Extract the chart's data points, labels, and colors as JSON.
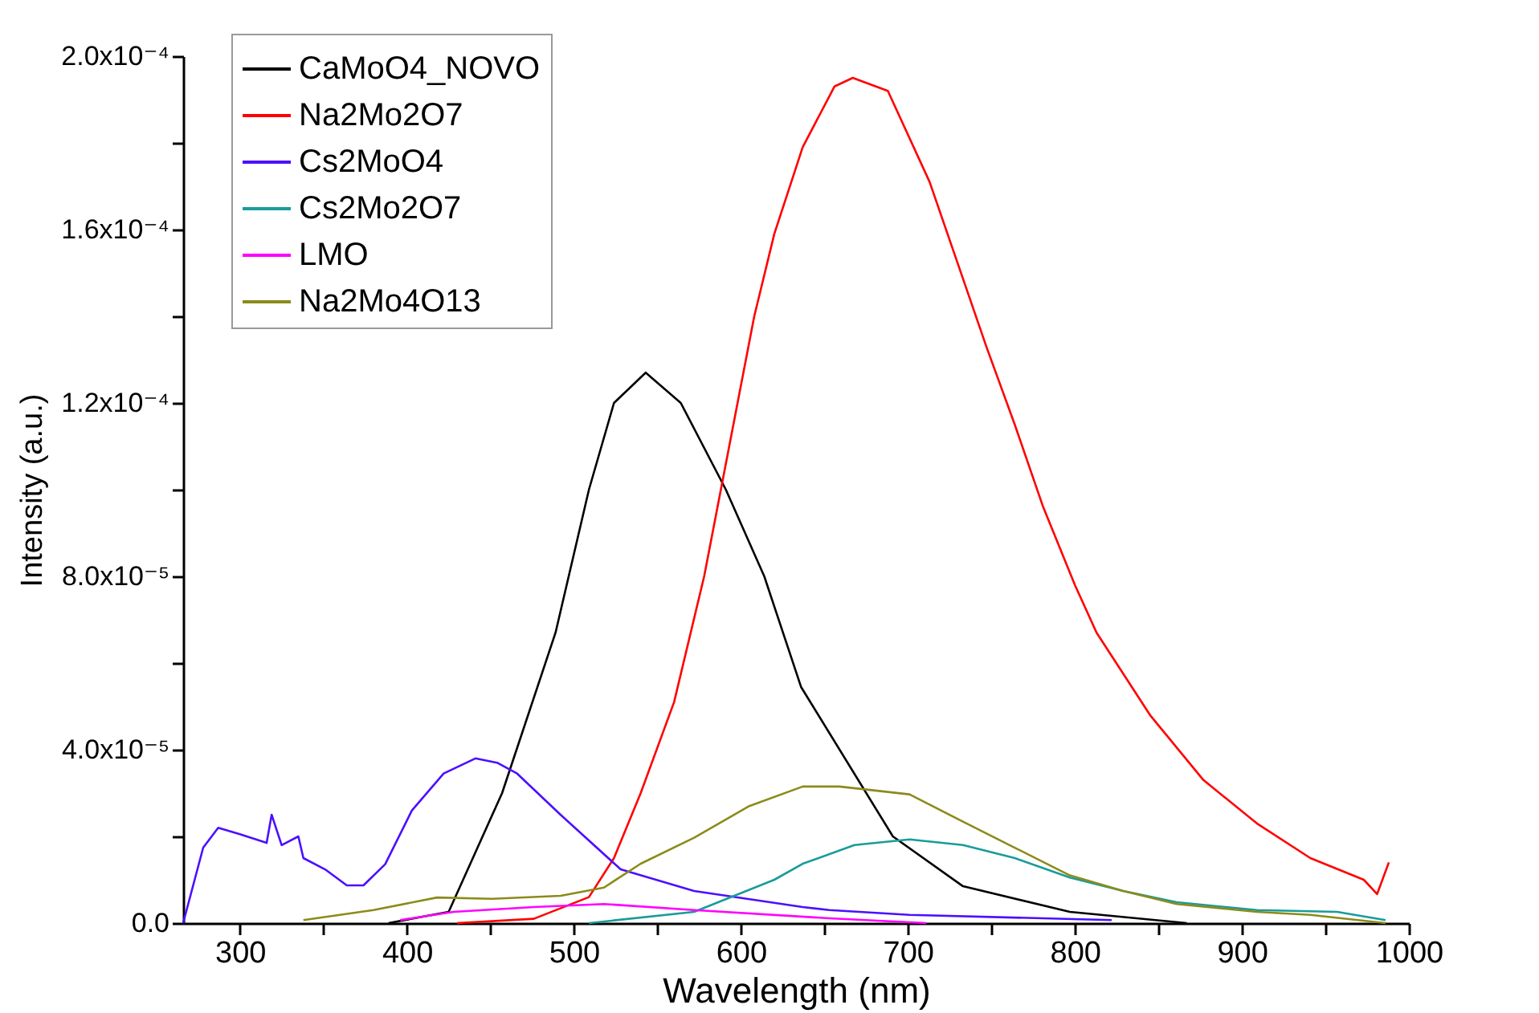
{
  "chart_data": {
    "type": "line",
    "xlabel": "Wavelength (nm)",
    "ylabel": "Intensity (a.u.)",
    "xlim": [
      266,
      1000
    ],
    "ylim": [
      0,
      0.0002
    ],
    "xticks": [
      {
        "value": 300,
        "label": "300"
      },
      {
        "value": 350,
        "label": null
      },
      {
        "value": 400,
        "label": "400"
      },
      {
        "value": 450,
        "label": null
      },
      {
        "value": 500,
        "label": "500"
      },
      {
        "value": 550,
        "label": null
      },
      {
        "value": 600,
        "label": "600"
      },
      {
        "value": 650,
        "label": null
      },
      {
        "value": 700,
        "label": "700"
      },
      {
        "value": 750,
        "label": null
      },
      {
        "value": 800,
        "label": "800"
      },
      {
        "value": 850,
        "label": null
      },
      {
        "value": 900,
        "label": "900"
      },
      {
        "value": 950,
        "label": null
      },
      {
        "value": 1000,
        "label": "1000"
      }
    ],
    "yticks": [
      {
        "value": 0,
        "label": "0.0"
      },
      {
        "value": 2e-05,
        "label": null
      },
      {
        "value": 4e-05,
        "label": "4.0x10⁻⁵"
      },
      {
        "value": 6e-05,
        "label": null
      },
      {
        "value": 8e-05,
        "label": "8.0x10⁻⁵"
      },
      {
        "value": 0.0001,
        "label": null
      },
      {
        "value": 0.00012,
        "label": "1.2x10⁻⁴"
      },
      {
        "value": 0.00014,
        "label": null
      },
      {
        "value": 0.00016,
        "label": "1.6x10⁻⁴"
      },
      {
        "value": 0.00018,
        "label": null
      },
      {
        "value": 0.0002,
        "label": "2.0x10⁻⁴"
      }
    ],
    "grid": false,
    "legend": "top left",
    "series": [
      {
        "name": "CaMoO4_NOVO",
        "color": "#000000",
        "x": [
          389,
          425,
          457,
          489,
          509,
          524,
          543,
          564,
          591,
          614,
          636,
          691,
          733,
          797,
          867
        ],
        "values": [
          0,
          2.6e-06,
          3e-05,
          6.7e-05,
          0.0001,
          0.00012,
          0.000127,
          0.00012,
          0.0001,
          8e-05,
          5.45e-05,
          2e-05,
          8.5e-06,
          2.6e-06,
          0
        ]
      },
      {
        "name": "Na2Mo2O7",
        "color": "#ff0000",
        "x": [
          430,
          476,
          509,
          524,
          540,
          560,
          578,
          588,
          598,
          608,
          620,
          637,
          656,
          667,
          688,
          713,
          730,
          747,
          764,
          781,
          800,
          813,
          845,
          877,
          909,
          941,
          973,
          981,
          988
        ],
        "values": [
          0,
          1e-06,
          6e-06,
          1.5e-05,
          3e-05,
          5.1e-05,
          8e-05,
          0.0001,
          0.00012,
          0.00014,
          0.000159,
          0.000179,
          0.000193,
          0.000195,
          0.000192,
          0.000171,
          0.000152,
          0.000133,
          0.000115,
          9.6e-05,
          7.8e-05,
          6.7e-05,
          4.8e-05,
          3.3e-05,
          2.3e-05,
          1.5e-05,
          1e-05,
          6.7e-06,
          1.4e-05
        ]
      },
      {
        "name": "Cs2MoO4",
        "color": "#4b0fff",
        "x": [
          266,
          278,
          287,
          300,
          316,
          319,
          325,
          335,
          338,
          351,
          364,
          374,
          387,
          403,
          422,
          441,
          454,
          466,
          492,
          528,
          572,
          637,
          653,
          701,
          822
        ],
        "values": [
          0,
          1.74e-05,
          2.2e-05,
          2.05e-05,
          1.85e-05,
          2.5e-05,
          1.8e-05,
          2e-05,
          1.5e-05,
          1.24e-05,
          8.7e-06,
          8.7e-06,
          1.36e-05,
          2.6e-05,
          3.45e-05,
          3.8e-05,
          3.7e-05,
          3.45e-05,
          2.5e-05,
          1.24e-05,
          7.4e-06,
          3.7e-06,
          3e-06,
          1.9e-06,
          7e-07
        ]
      },
      {
        "name": "Cs2Mo2O7",
        "color": "#1a9b9b",
        "x": [
          509,
          572,
          620,
          637,
          668,
          701,
          733,
          764,
          797,
          829,
          861,
          909,
          957,
          986
        ],
        "values": [
          0,
          2.6e-06,
          1e-05,
          1.37e-05,
          1.8e-05,
          1.93e-05,
          1.8e-05,
          1.5e-05,
          1.05e-05,
          7.4e-06,
          4.8e-06,
          3e-06,
          2.6e-06,
          7e-07
        ]
      },
      {
        "name": "LMO",
        "color": "#ff00ff",
        "x": [
          396,
          428,
          476,
          518,
          572,
          653,
          711
        ],
        "values": [
          7e-07,
          2.6e-06,
          3.7e-06,
          4.4e-06,
          3e-06,
          1.1e-06,
          0
        ]
      },
      {
        "name": "Na2Mo4O13",
        "color": "#8b8b1a",
        "x": [
          338,
          380,
          418,
          451,
          492,
          518,
          540,
          572,
          605,
          637,
          659,
          701,
          733,
          764,
          797,
          829,
          861,
          909,
          941,
          986
        ],
        "values": [
          7e-07,
          3e-06,
          5.9e-06,
          5.6e-06,
          6.3e-06,
          8.2e-06,
          1.37e-05,
          1.97e-05,
          2.7e-05,
          3.15e-05,
          3.15e-05,
          2.97e-05,
          2.34e-05,
          1.74e-05,
          1.1e-05,
          7.4e-06,
          4.4e-06,
          2.6e-06,
          1.9e-06,
          0
        ]
      }
    ]
  }
}
